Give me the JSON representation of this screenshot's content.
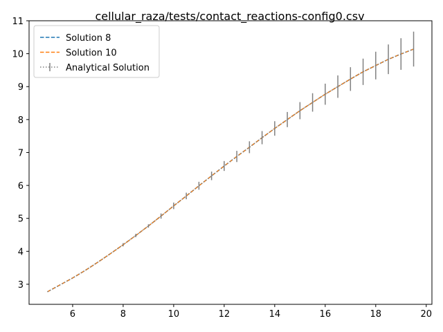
{
  "chart_data": {
    "type": "line",
    "title": "cellular_raza/tests/contact_reactions-config0.csv",
    "xlabel": "",
    "ylabel": "",
    "xlim": [
      4.275,
      20.225
    ],
    "ylim": [
      2.39,
      11.0
    ],
    "xticks": [
      6,
      8,
      10,
      12,
      14,
      16,
      18,
      20
    ],
    "yticks": [
      3,
      4,
      5,
      6,
      7,
      8,
      9,
      10,
      11
    ],
    "grid": false,
    "legend_position": "top-left",
    "x": [
      5.0,
      5.5,
      6.0,
      6.5,
      7.0,
      7.5,
      8.0,
      8.5,
      9.0,
      9.5,
      10.0,
      10.5,
      11.0,
      11.5,
      12.0,
      12.5,
      13.0,
      13.5,
      14.0,
      14.5,
      15.0,
      15.5,
      16.0,
      16.5,
      17.0,
      17.5,
      18.0,
      18.5,
      19.0,
      19.5
    ],
    "series": [
      {
        "name": "Solution 8",
        "style": "dashed",
        "color": "#1f77b4",
        "values": [
          2.77,
          2.98,
          3.19,
          3.42,
          3.67,
          3.93,
          4.2,
          4.48,
          4.77,
          5.07,
          5.38,
          5.68,
          5.99,
          6.29,
          6.59,
          6.88,
          7.16,
          7.45,
          7.73,
          8.0,
          8.27,
          8.52,
          8.77,
          9.0,
          9.23,
          9.45,
          9.64,
          9.83,
          9.99,
          10.14
        ]
      },
      {
        "name": "Solution 10",
        "style": "dashed",
        "color": "#ff7f0e",
        "values": [
          2.77,
          2.98,
          3.19,
          3.42,
          3.67,
          3.93,
          4.2,
          4.48,
          4.77,
          5.07,
          5.38,
          5.68,
          5.99,
          6.29,
          6.59,
          6.88,
          7.16,
          7.45,
          7.73,
          8.0,
          8.27,
          8.52,
          8.77,
          9.0,
          9.23,
          9.45,
          9.64,
          9.83,
          9.99,
          10.14
        ]
      },
      {
        "name": "Analytical Solution",
        "style": "dotted-errorbar",
        "color": "#808080",
        "values": [
          2.77,
          2.98,
          3.19,
          3.42,
          3.67,
          3.93,
          4.2,
          4.48,
          4.77,
          5.07,
          5.38,
          5.68,
          5.99,
          6.29,
          6.59,
          6.88,
          7.16,
          7.45,
          7.73,
          8.0,
          8.27,
          8.52,
          8.77,
          9.0,
          9.23,
          9.45,
          9.64,
          9.83,
          9.99,
          10.14
        ],
        "errors": [
          0.0,
          0.0,
          0.0,
          0.0,
          0.0,
          0.0,
          0.05,
          0.05,
          0.05,
          0.08,
          0.1,
          0.1,
          0.12,
          0.13,
          0.15,
          0.17,
          0.18,
          0.2,
          0.22,
          0.23,
          0.26,
          0.28,
          0.32,
          0.34,
          0.36,
          0.4,
          0.42,
          0.45,
          0.48,
          0.53
        ]
      }
    ]
  }
}
